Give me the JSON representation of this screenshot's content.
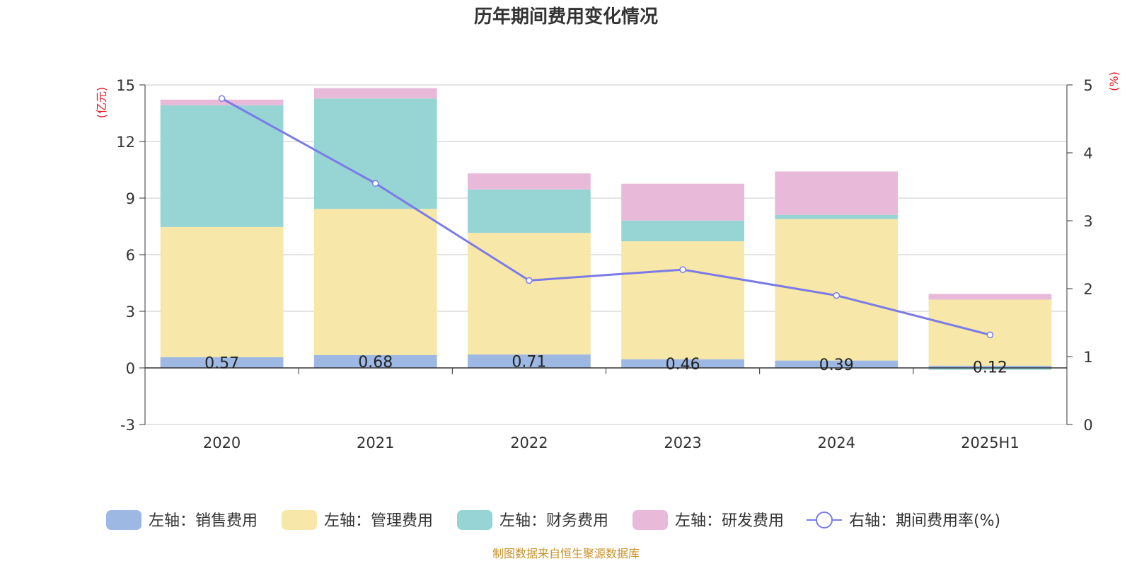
{
  "chart_data": {
    "type": "bar",
    "title": "历年期间费用变化情况",
    "categories": [
      "2020",
      "2021",
      "2022",
      "2023",
      "2024",
      "2025H1"
    ],
    "left_axis": {
      "unit": "(亿元)",
      "ylim": [
        -3,
        15
      ],
      "ticks": [
        "-3",
        "0",
        "3",
        "6",
        "9",
        "12",
        "15"
      ]
    },
    "right_axis": {
      "unit": "(%)",
      "ylim": [
        0,
        5
      ],
      "ticks": [
        "0",
        "1",
        "2",
        "3",
        "4",
        "5"
      ]
    },
    "series": [
      {
        "name": "左轴：销售费用",
        "kind": "stacked-bar",
        "color": "#9cb8e3",
        "values": [
          0.57,
          0.68,
          0.71,
          0.46,
          0.39,
          0.12
        ],
        "labels": [
          "0.57",
          "0.68",
          "0.71",
          "0.46",
          "0.39",
          "0.12"
        ]
      },
      {
        "name": "左轴：管理费用",
        "kind": "stacked-bar",
        "color": "#f7e7a8",
        "values": [
          6.9,
          7.75,
          6.45,
          6.25,
          7.5,
          3.5
        ]
      },
      {
        "name": "左轴：财务费用",
        "kind": "stacked-bar",
        "color": "#97d4d4",
        "values": [
          6.45,
          5.85,
          2.3,
          1.1,
          0.22,
          -0.1
        ]
      },
      {
        "name": "左轴：研发费用",
        "kind": "stacked-bar",
        "color": "#e8b9d9",
        "values": [
          0.3,
          0.55,
          0.85,
          1.95,
          2.3,
          0.3
        ]
      },
      {
        "name": "右轴：期间费用率(%)",
        "kind": "line",
        "color": "#7b7be8",
        "values": [
          4.8,
          3.55,
          2.12,
          2.28,
          1.9,
          1.32
        ]
      }
    ],
    "grid": true,
    "legend_position": "bottom"
  },
  "source": "制图数据来自恒生聚源数据库"
}
